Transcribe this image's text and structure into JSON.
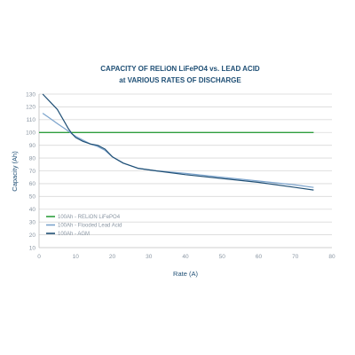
{
  "chart_data": {
    "type": "line",
    "title_line1": "CAPACITY OF RELiON LiFePO4 vs. LEAD ACID",
    "title_line2": "at VARIOUS RATES OF DISCHARGE",
    "xlabel": "Rate (A)",
    "ylabel": "Capacity (Ah)",
    "xlim": [
      0,
      80
    ],
    "ylim": [
      10,
      130
    ],
    "x_ticks": [
      "0",
      "10",
      "20",
      "30",
      "40",
      "50",
      "60",
      "70",
      "80"
    ],
    "y_ticks": [
      "10",
      "20",
      "30",
      "40",
      "50",
      "60",
      "70",
      "80",
      "90",
      "100",
      "110",
      "120",
      "130"
    ],
    "grid": "horizontal",
    "legend_position": "bottom-left",
    "series": [
      {
        "name": "100Ah - RELiON LiFePO4",
        "color": "#2e9e3e",
        "x": [
          0,
          75
        ],
        "y": [
          100,
          100
        ]
      },
      {
        "name": "100Ah - Flooded Lead Acid",
        "color": "#7ba3cc",
        "x": [
          1,
          3,
          5,
          7,
          8,
          9,
          10,
          12,
          14,
          16,
          18,
          20,
          23,
          27,
          32,
          40,
          50,
          60,
          70,
          75
        ],
        "y": [
          115,
          111,
          107,
          103,
          101,
          99,
          97,
          94,
          91,
          89,
          86,
          81,
          76,
          72,
          70,
          68,
          65,
          62,
          59,
          57
        ]
      },
      {
        "name": "100Ah - AGM",
        "color": "#1f4f75",
        "x": [
          1,
          3,
          5,
          7,
          8,
          9,
          10,
          12,
          14,
          16,
          18,
          20,
          23,
          27,
          32,
          40,
          50,
          60,
          70,
          75
        ],
        "y": [
          130,
          124,
          118,
          108,
          103,
          99,
          96,
          93,
          91,
          90,
          87,
          81,
          76,
          72,
          70,
          67,
          64,
          61,
          57,
          55
        ]
      }
    ]
  }
}
